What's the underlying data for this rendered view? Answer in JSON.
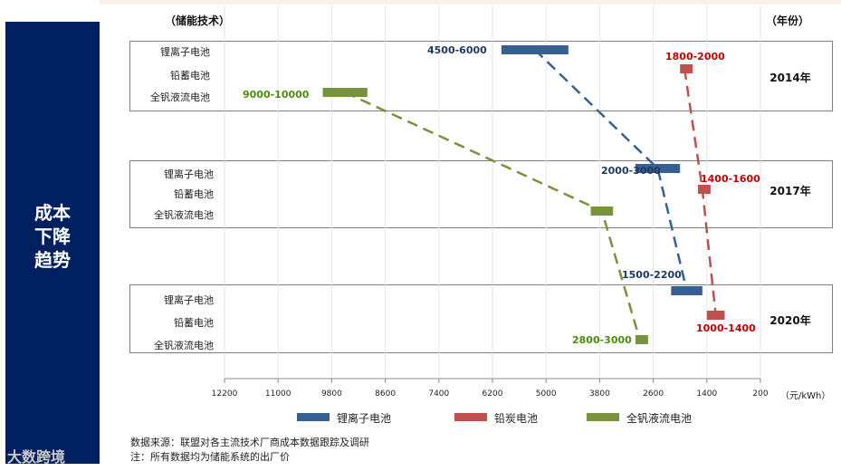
{
  "header": {
    "left": "（储能技术）",
    "right": "（年份）"
  },
  "side_title_lines": [
    "成本",
    "下降",
    "趋势"
  ],
  "colors": {
    "lithium": "#376092",
    "lead": "#c0504d",
    "vanadium": "#77933c",
    "panel": "#002060"
  },
  "chart_data": {
    "type": "range-bar",
    "title": "成本下降趋势",
    "x_unit": "（元/kWh）",
    "x_axis": {
      "min": 200,
      "max": 12200,
      "reversed": true,
      "ticks": [
        "12200",
        "11000",
        "9800",
        "8600",
        "7400",
        "6200",
        "5000",
        "3800",
        "2600",
        "1400",
        "200"
      ]
    },
    "legend": [
      "锂离子电池",
      "铅炭电池",
      "全钒液流电池"
    ],
    "row_labels": [
      "锂离子电池",
      "铅蓄电池",
      "全钒液流电池"
    ],
    "groups": [
      {
        "year": "2014年",
        "bars": [
          {
            "series": "锂离子电池",
            "range": [
              4500,
              6000
            ],
            "label": "4500-6000"
          },
          {
            "series": "铅炭电池",
            "range": [
              1800,
              2000
            ],
            "label": "1800-2000"
          },
          {
            "series": "全钒液流电池",
            "range": [
              9000,
              10000
            ],
            "label": "9000-10000"
          }
        ]
      },
      {
        "year": "2017年",
        "bars": [
          {
            "series": "锂离子电池",
            "range": [
              2000,
              3000
            ],
            "label": "2000-3000"
          },
          {
            "series": "铅炭电池",
            "range": [
              1400,
              1600
            ],
            "label": "1400-1600"
          },
          {
            "series": "全钒液流电池",
            "range": [
              3500,
              4000
            ],
            "label": ""
          }
        ]
      },
      {
        "year": "2020年",
        "bars": [
          {
            "series": "锂离子电池",
            "range": [
              1500,
              2200
            ],
            "label": "1500-2200"
          },
          {
            "series": "铅炭电池",
            "range": [
              1000,
              1400
            ],
            "label": "1000-1400"
          },
          {
            "series": "全钒液流电池",
            "range": [
              2800,
              3000
            ],
            "label": "2800-3000"
          }
        ]
      }
    ]
  },
  "notes": {
    "source": "数据来源：联盟对各主流技术厂商成本数据跟踪及调研",
    "note": "注：所有数据均为储能系统的出厂价"
  },
  "watermark": "大数跨境"
}
